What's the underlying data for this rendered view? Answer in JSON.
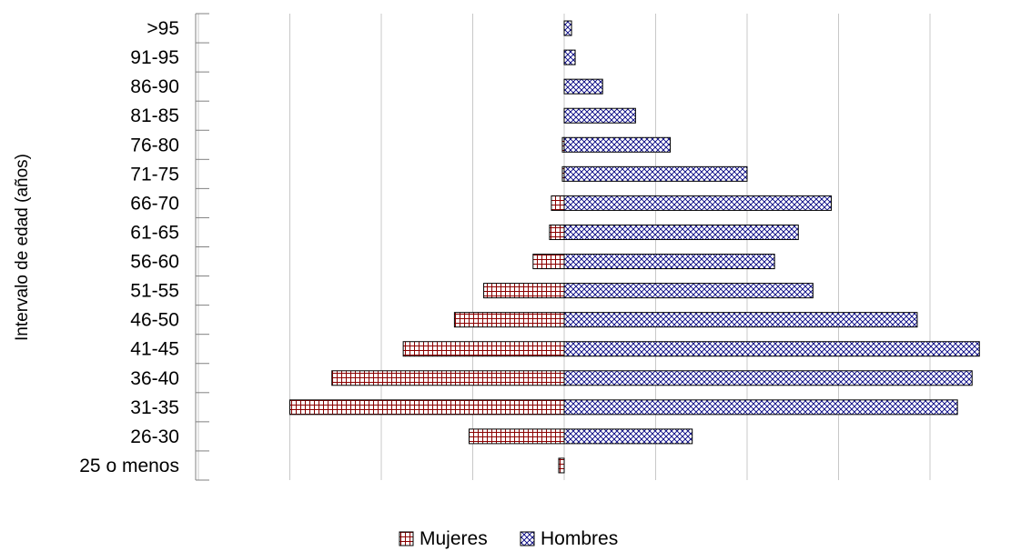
{
  "chart_data": {
    "type": "bar",
    "orientation": "horizontal",
    "layout": "population-pyramid",
    "ylabel": "Intervalo de edad (años)",
    "xlabel": "",
    "categories": [
      "25 o menos",
      "26-30",
      "31-35",
      "36-40",
      "41-45",
      "46-50",
      "51-55",
      "56-60",
      "61-65",
      "66-70",
      "71-75",
      "76-80",
      "81-85",
      "86-90",
      "91-95",
      ">95"
    ],
    "series": [
      {
        "name": "Mujeres",
        "side": "left",
        "pattern": "grid",
        "color": "#8b0000",
        "values": [
          0.3,
          5.2,
          15.0,
          12.7,
          8.8,
          6.0,
          4.4,
          1.7,
          0.8,
          0.7,
          0.1,
          0.1,
          0,
          0,
          0,
          0
        ]
      },
      {
        "name": "Hombres",
        "side": "right",
        "pattern": "crosshatch",
        "color": "#000080",
        "values": [
          0,
          7.0,
          21.5,
          22.3,
          22.7,
          19.3,
          13.6,
          11.5,
          12.8,
          14.6,
          10.0,
          5.8,
          3.9,
          2.1,
          0.6,
          0.4
        ]
      }
    ],
    "xlim": [
      -20,
      25
    ],
    "grid": true,
    "legend": "bottom"
  }
}
